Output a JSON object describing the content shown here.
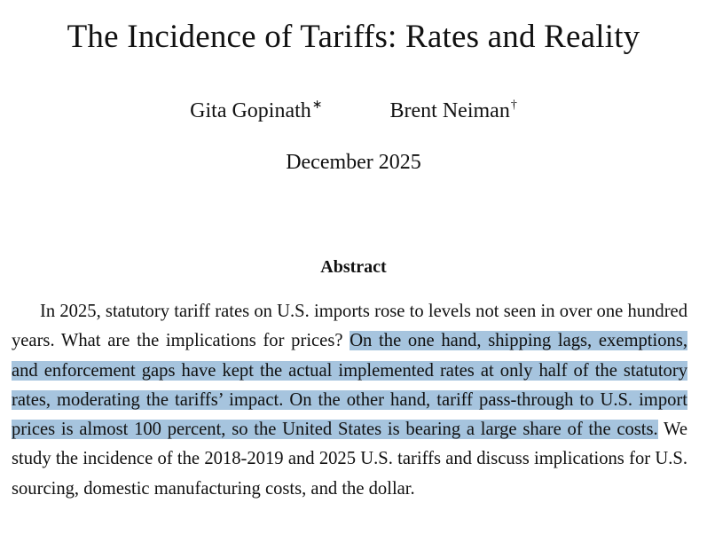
{
  "paper": {
    "title": "The Incidence of Tariffs: Rates and Reality",
    "authors": [
      {
        "name": "Gita Gopinath",
        "mark": "∗"
      },
      {
        "name": "Brent Neiman",
        "mark": "†"
      }
    ],
    "date": "December 2025",
    "abstract_heading": "Abstract",
    "abstract": {
      "before_highlight": "In 2025, statutory tariff rates on U.S. imports rose to levels not seen in over one hundred years. What are the implications for prices? ",
      "highlighted": "On the one hand, shipping lags, exemptions, and enforcement gaps have kept the actual implemented rates at only half of the statutory rates, moderating the tariffs’ impact. On the other hand, tariff pass-through to U.S. import prices is almost 100 percent, so the United States is bearing a large share of the costs.",
      "after_highlight": " We study the incidence of the 2018-2019 and 2025 U.S. tariffs and discuss implications for U.S. sourcing, domestic manufacturing costs, and the dollar."
    }
  },
  "colors": {
    "selection_highlight": "#a6c4de",
    "text": "#111111",
    "background": "#ffffff"
  }
}
